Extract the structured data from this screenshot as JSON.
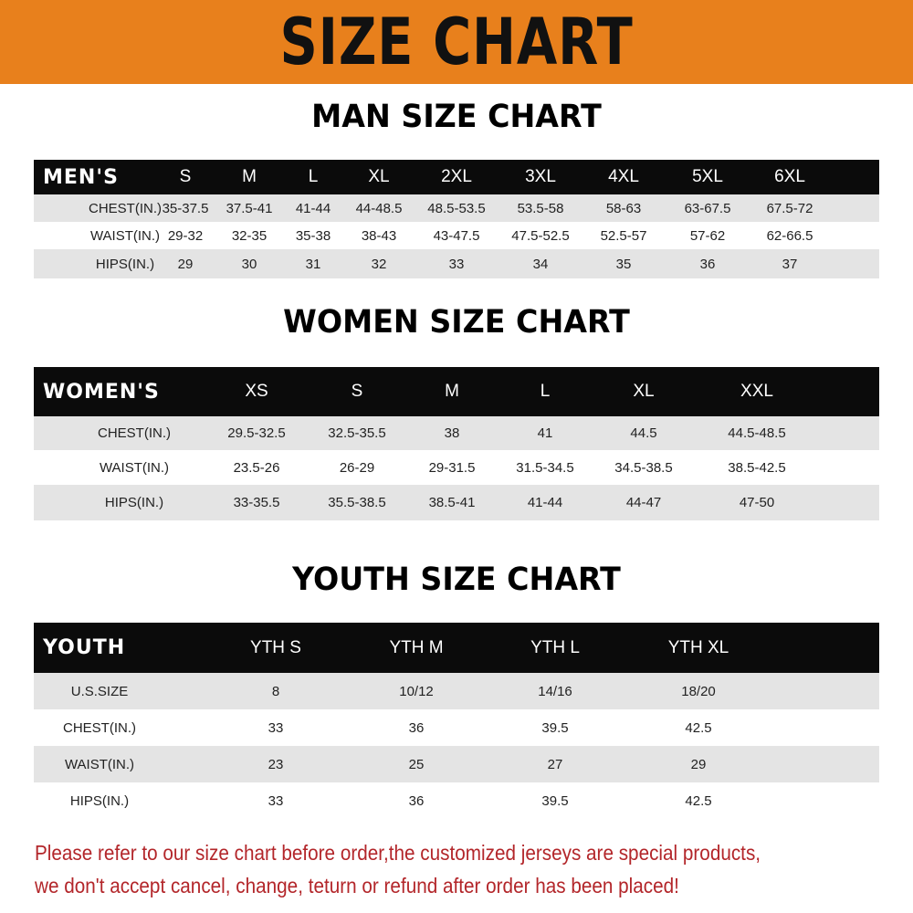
{
  "title": "SIZE CHART",
  "colors": {
    "banner": "#e8801c",
    "header_row": "#0b0b0b",
    "stripe": "#e4e4e4",
    "note": "#b3262a"
  },
  "men": {
    "title": "MAN SIZE CHART",
    "header": "MEN'S",
    "sizes": [
      "S",
      "M",
      "L",
      "XL",
      "2XL",
      "3XL",
      "4XL",
      "5XL",
      "6XL"
    ],
    "rows": [
      {
        "label": "CHEST(IN.)",
        "values": [
          "35-37.5",
          "37.5-41",
          "41-44",
          "44-48.5",
          "48.5-53.5",
          "53.5-58",
          "58-63",
          "63-67.5",
          "67.5-72"
        ]
      },
      {
        "label": "WAIST(IN.)",
        "values": [
          "29-32",
          "32-35",
          "35-38",
          "38-43",
          "43-47.5",
          "47.5-52.5",
          "52.5-57",
          "57-62",
          "62-66.5"
        ]
      },
      {
        "label": "HIPS(IN.)",
        "values": [
          "29",
          "30",
          "31",
          "32",
          "33",
          "34",
          "35",
          "36",
          "37"
        ]
      }
    ]
  },
  "women": {
    "title": "WOMEN SIZE CHART",
    "header": "WOMEN'S",
    "sizes": [
      "XS",
      "S",
      "M",
      "L",
      "XL",
      "XXL"
    ],
    "rows": [
      {
        "label": "CHEST(IN.)",
        "values": [
          "29.5-32.5",
          "32.5-35.5",
          "38",
          "41",
          "44.5",
          "44.5-48.5"
        ]
      },
      {
        "label": "WAIST(IN.)",
        "values": [
          "23.5-26",
          "26-29",
          "29-31.5",
          "31.5-34.5",
          "34.5-38.5",
          "38.5-42.5"
        ]
      },
      {
        "label": "HIPS(IN.)",
        "values": [
          "33-35.5",
          "35.5-38.5",
          "38.5-41",
          "41-44",
          "44-47",
          "47-50"
        ]
      }
    ]
  },
  "youth": {
    "title": "YOUTH SIZE CHART",
    "header": "YOUTH",
    "sizes": [
      "YTH S",
      "YTH M",
      "YTH L",
      "YTH XL"
    ],
    "rows": [
      {
        "label": "U.S.SIZE",
        "values": [
          "8",
          "10/12",
          "14/16",
          "18/20"
        ]
      },
      {
        "label": "CHEST(IN.)",
        "values": [
          "33",
          "36",
          "39.5",
          "42.5"
        ]
      },
      {
        "label": "WAIST(IN.)",
        "values": [
          "23",
          "25",
          "27",
          "29"
        ]
      },
      {
        "label": "HIPS(IN.)",
        "values": [
          "33",
          "36",
          "39.5",
          "42.5"
        ]
      }
    ]
  },
  "notice": {
    "line1": "Please refer to our size chart before order,the customized jerseys are special products,",
    "line2": "we don't accept cancel, change, teturn or refund after order has been placed!"
  }
}
